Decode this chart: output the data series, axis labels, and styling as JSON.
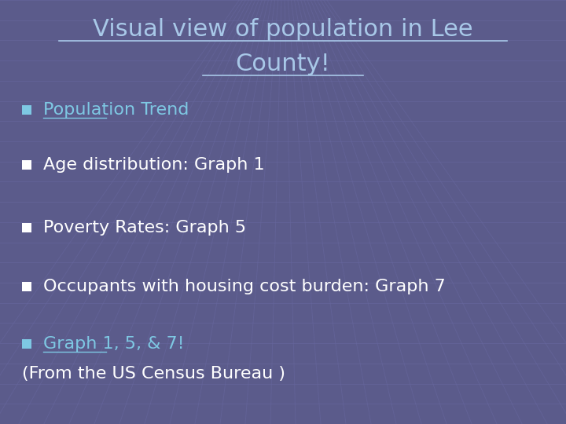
{
  "title_line1": "Visual view of population in Lee",
  "title_line2": "County!",
  "title_color": "#A8C8E8",
  "title_fontsize": 22,
  "background_color": "#5B5B8B",
  "bullet_items": [
    {
      "text": "Population Trend",
      "color": "#7EC8E3",
      "underline": true
    },
    {
      "text": "Age distribution: Graph 1",
      "color": "#FFFFFF",
      "underline": false
    },
    {
      "text": "Poverty Rates: Graph 5",
      "color": "#FFFFFF",
      "underline": false
    },
    {
      "text": "Occupants with housing cost burden: Graph 7",
      "color": "#FFFFFF",
      "underline": false
    }
  ],
  "bottom_link": "Graph 1, 5, & 7!",
  "bottom_link_color": "#7EC8E3",
  "bottom_text": "(From the US Census Bureau )",
  "bottom_text_color": "#FFFFFF",
  "bullet_fontsize": 16,
  "grid_color": "#6868A0",
  "figwidth": 7.2,
  "figheight": 5.4,
  "dpi": 100
}
